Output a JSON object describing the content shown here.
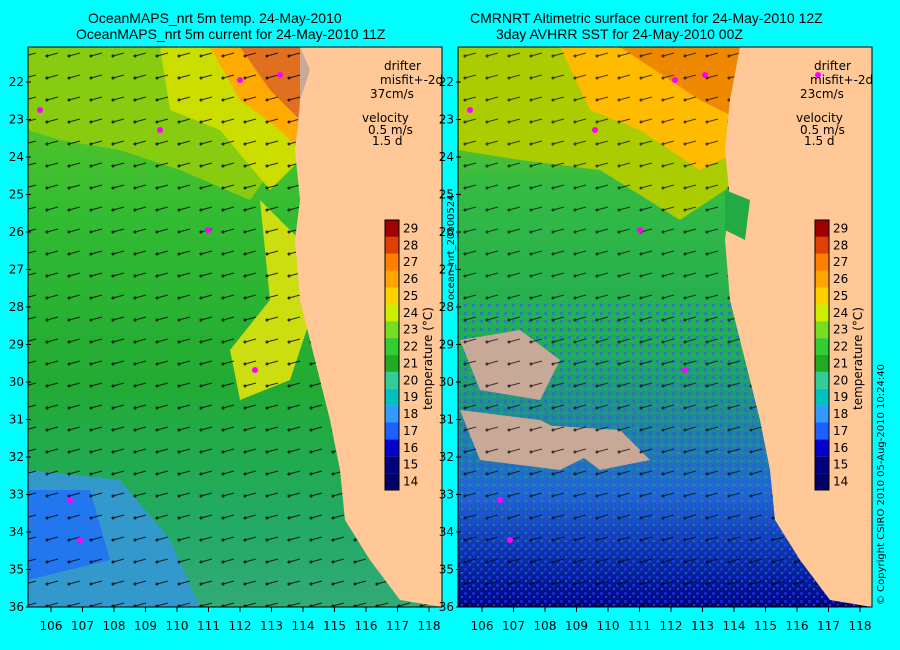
{
  "left_panel": {
    "title_line1": "OceanMAPS_nrt 5m temp. 24-May-2010",
    "title_line2": "OceanMAPS_nrt 5m current for 24-May-2010 11Z",
    "drifter_label": "drifter",
    "misfit_label": "misfit+-2d",
    "drifter_speed": "37cm/s",
    "velocity_label": "velocity",
    "velocity_value": "0.5 m/s",
    "velocity_time": "1.5 d"
  },
  "right_panel": {
    "title_line1": "CMRNRT Altimetric surface current for 24-May-2010 12Z",
    "title_line2": "3day AVHRR SST for 24-May-2010 00Z",
    "drifter_label": "drifter",
    "misfit_label": "misfit+-2d",
    "drifter_speed": "23cm/s",
    "velocity_label": "velocity",
    "velocity_value": "0.5 m/s",
    "velocity_time": "1.5 d"
  },
  "side_label_left": "ocean_nrt_20100524",
  "side_label_right": "© Copyright CSIRO 2010   05-Aug-2010 10:24:40",
  "colorbar": {
    "label": "temperature (°C)",
    "ticks": [
      "14",
      "15",
      "16",
      "17",
      "18",
      "19",
      "20",
      "21",
      "22",
      "23",
      "24",
      "25",
      "26",
      "27",
      "28",
      "29"
    ],
    "colors": [
      "#000066",
      "#00007f",
      "#0000cc",
      "#1f5fff",
      "#3399ff",
      "#00c0c0",
      "#33cc99",
      "#22aa22",
      "#33cc33",
      "#77dd22",
      "#ccee00",
      "#ffd000",
      "#ffa500",
      "#ff7f00",
      "#e04000",
      "#a00000"
    ]
  },
  "axes": {
    "longitude_ticks": [
      "106",
      "107",
      "108",
      "109",
      "110",
      "111",
      "112",
      "113",
      "114",
      "115",
      "116",
      "117",
      "118"
    ],
    "latitude_ticks": [
      "22",
      "23",
      "24",
      "25",
      "26",
      "27",
      "28",
      "29",
      "30",
      "31",
      "32",
      "33",
      "34",
      "35",
      "36"
    ]
  },
  "colors": {
    "background": "#00ffff",
    "land": "#ffc896",
    "drifter": "#ff00ff",
    "cloud": "#c8a896"
  }
}
